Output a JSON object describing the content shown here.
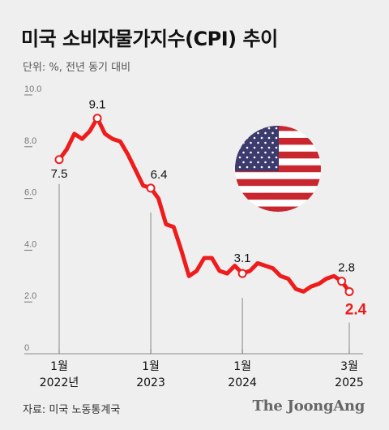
{
  "title": "미국 소비자물가지수(CPI) 추이",
  "unit_note": "단위: %, 전년 동기 대비",
  "source": "자료: 미국 노동통계국",
  "brand": "The JoongAng",
  "colors": {
    "line": "#ee1c1c",
    "background": "#efefef",
    "last_label": "#e81e1e"
  },
  "icons": {
    "flag": "us-flag-icon"
  },
  "chart_data": {
    "type": "line",
    "title": "미국 소비자물가지수(CPI) 추이",
    "ylabel": "단위: %, 전년 동기 대비",
    "ylim": [
      0,
      10
    ],
    "yticks": [
      "0",
      "2.0",
      "4.0",
      "6.0",
      "8.0",
      "10.0"
    ],
    "grid": false,
    "x_labels": [
      {
        "month": "1월",
        "year": "2022년"
      },
      {
        "month": "1월",
        "year": "2023"
      },
      {
        "month": "1월",
        "year": "2024"
      },
      {
        "month": "3월",
        "year": "2025"
      }
    ],
    "series": [
      {
        "x": [
          "2022-01",
          "2022-02",
          "2022-03",
          "2022-04",
          "2022-05",
          "2022-06",
          "2022-07",
          "2022-08",
          "2022-09",
          "2022-10",
          "2022-11",
          "2022-12",
          "2023-01",
          "2023-02",
          "2023-03",
          "2023-04",
          "2023-05",
          "2023-06",
          "2023-07",
          "2023-08",
          "2023-09",
          "2023-10",
          "2023-11",
          "2023-12",
          "2024-01",
          "2024-02",
          "2024-03",
          "2024-04",
          "2024-05",
          "2024-06",
          "2024-07",
          "2024-08",
          "2024-09",
          "2024-10",
          "2024-11",
          "2024-12",
          "2025-01",
          "2025-02",
          "2025-03"
        ],
        "values": [
          7.5,
          7.9,
          8.5,
          8.3,
          8.6,
          9.1,
          8.5,
          8.3,
          8.2,
          7.7,
          7.1,
          6.5,
          6.4,
          6.0,
          5.0,
          4.9,
          4.0,
          3.0,
          3.2,
          3.7,
          3.7,
          3.2,
          3.1,
          3.4,
          3.1,
          3.2,
          3.5,
          3.4,
          3.3,
          3.0,
          2.9,
          2.5,
          2.4,
          2.6,
          2.7,
          2.9,
          3.0,
          2.8,
          2.4
        ]
      }
    ],
    "annotations": [
      {
        "x": "2022-01",
        "value": "7.5"
      },
      {
        "x": "2022-06",
        "value": "9.1"
      },
      {
        "x": "2023-01",
        "value": "6.4"
      },
      {
        "x": "2024-01",
        "value": "3.1"
      },
      {
        "x": "2025-02",
        "value": "2.8"
      },
      {
        "x": "2025-03",
        "value": "2.4"
      }
    ]
  }
}
